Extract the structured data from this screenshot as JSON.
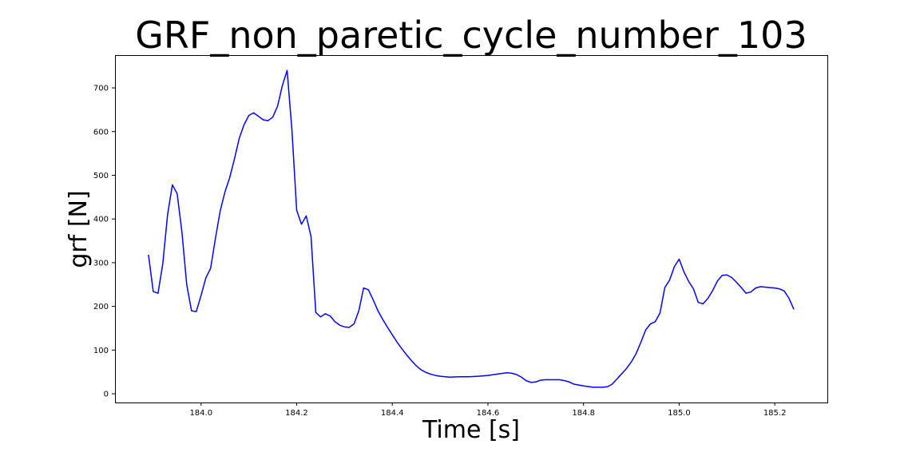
{
  "chart_data": {
    "type": "line",
    "title": "GRF_non_paretic_cycle_number_103",
    "xlabel": "Time [s]",
    "ylabel": "grf [N]",
    "xlim": [
      183.82,
      185.31
    ],
    "ylim": [
      -20,
      775
    ],
    "grid": false,
    "legend": "none",
    "x_ticks": [
      184.0,
      184.2,
      184.4,
      184.6,
      184.8,
      185.0,
      185.2
    ],
    "x_tick_labels": [
      "184.0",
      "184.2",
      "184.4",
      "184.6",
      "184.8",
      "185.0",
      "185.2"
    ],
    "y_ticks": [
      0,
      100,
      200,
      300,
      400,
      500,
      600,
      700
    ],
    "y_tick_labels": [
      "0",
      "100",
      "200",
      "300",
      "400",
      "500",
      "600",
      "700"
    ],
    "series": [
      {
        "color": "#0000ff",
        "x": [
          183.89,
          183.9,
          183.91,
          183.92,
          183.93,
          183.94,
          183.95,
          183.96,
          183.97,
          183.98,
          183.99,
          184.0,
          184.01,
          184.02,
          184.03,
          184.04,
          184.05,
          184.06,
          184.07,
          184.08,
          184.09,
          184.1,
          184.11,
          184.12,
          184.13,
          184.14,
          184.15,
          184.16,
          184.17,
          184.18,
          184.19,
          184.2,
          184.21,
          184.22,
          184.23,
          184.24,
          184.25,
          184.26,
          184.27,
          184.28,
          184.29,
          184.3,
          184.31,
          184.32,
          184.33,
          184.34,
          184.35,
          184.36,
          184.37,
          184.38,
          184.39,
          184.4,
          184.41,
          184.42,
          184.43,
          184.44,
          184.45,
          184.46,
          184.47,
          184.48,
          184.49,
          184.5,
          184.52,
          184.54,
          184.56,
          184.58,
          184.6,
          184.62,
          184.64,
          184.65,
          184.66,
          184.67,
          184.68,
          184.69,
          184.7,
          184.71,
          184.72,
          184.74,
          184.75,
          184.76,
          184.77,
          184.78,
          184.8,
          184.82,
          184.84,
          184.85,
          184.86,
          184.87,
          184.88,
          184.89,
          184.9,
          184.91,
          184.92,
          184.93,
          184.94,
          184.95,
          184.96,
          184.97,
          184.98,
          184.99,
          185.0,
          185.01,
          185.02,
          185.03,
          185.04,
          185.05,
          185.06,
          185.07,
          185.08,
          185.09,
          185.1,
          185.11,
          185.12,
          185.13,
          185.14,
          185.15,
          185.16,
          185.17,
          185.18,
          185.19,
          185.2,
          185.21,
          185.22,
          185.23,
          185.24
        ],
        "y": [
          318,
          234,
          230,
          298,
          410,
          478,
          458,
          370,
          250,
          190,
          188,
          225,
          265,
          287,
          355,
          418,
          462,
          495,
          538,
          585,
          616,
          637,
          643,
          635,
          627,
          625,
          633,
          658,
          705,
          740,
          605,
          420,
          388,
          407,
          360,
          186,
          176,
          183,
          178,
          165,
          157,
          153,
          152,
          160,
          190,
          242,
          238,
          215,
          190,
          170,
          152,
          135,
          118,
          103,
          89,
          76,
          64,
          55,
          49,
          45,
          42,
          40,
          38,
          39,
          39,
          40,
          42,
          45,
          48,
          47,
          44,
          38,
          30,
          26,
          27,
          31,
          32,
          32,
          32,
          30,
          27,
          22,
          18,
          15,
          15,
          16,
          22,
          34,
          46,
          58,
          73,
          92,
          118,
          146,
          160,
          165,
          185,
          243,
          260,
          291,
          308,
          279,
          257,
          240,
          209,
          206,
          218,
          236,
          258,
          271,
          272,
          266,
          255,
          243,
          230,
          233,
          242,
          245,
          244,
          243,
          242,
          240,
          235,
          218,
          193
        ]
      }
    ]
  }
}
